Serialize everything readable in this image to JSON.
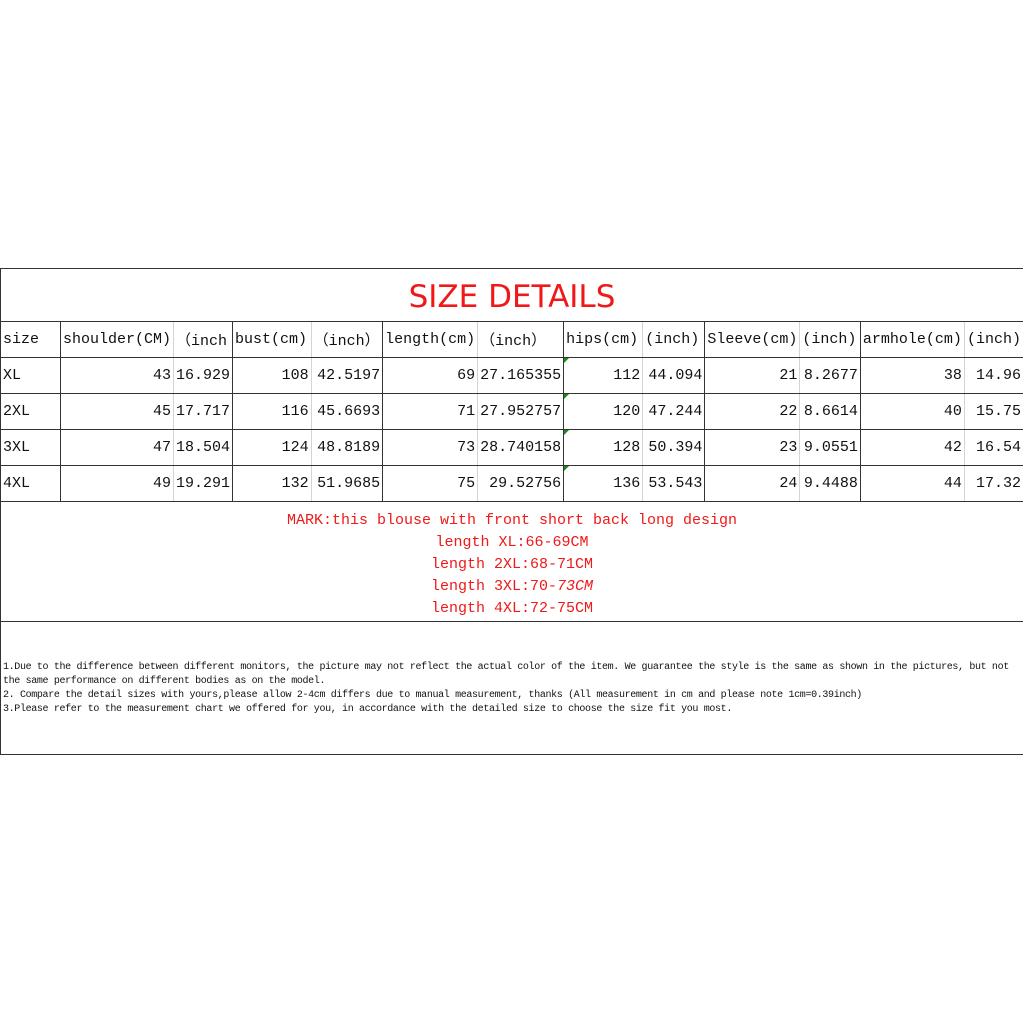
{
  "title": "SIZE DETAILS",
  "table": {
    "headers": [
      "size",
      "shoulder(CM)",
      "（inch",
      "bust(cm)",
      "（inch）",
      "length(cm)",
      "（inch）",
      "hips(cm)",
      "(inch)",
      "Sleeve(cm)",
      "(inch)",
      "armhole(cm)",
      "(inch)"
    ],
    "rows": [
      [
        "XL",
        "43",
        "16.929",
        "108",
        "42.5197",
        "69",
        "27.165355",
        "112",
        "44.094",
        "21",
        "8.2677",
        "38",
        "14.96"
      ],
      [
        "2XL",
        "45",
        "17.717",
        "116",
        "45.6693",
        "71",
        "27.952757",
        "120",
        "47.244",
        "22",
        "8.6614",
        "40",
        "15.75"
      ],
      [
        "3XL",
        "47",
        "18.504",
        "124",
        "48.8189",
        "73",
        "28.740158",
        "128",
        "50.394",
        "23",
        "9.0551",
        "42",
        "16.54"
      ],
      [
        "4XL",
        "49",
        "19.291",
        "132",
        "51.9685",
        "75",
        "29.52756",
        "136",
        "53.543",
        "24",
        "9.4488",
        "44",
        "17.32"
      ]
    ]
  },
  "mark": {
    "line1": "MARK:this blouse with front short back long design",
    "line2": "length XL:66-69CM",
    "line3": "length 2XL:68-71CM",
    "line4_a": "length 3XL:70-",
    "line4_b": "73CM",
    "line5": "length 4XL:72-75CM"
  },
  "notes": [
    "1.Due to the difference between different monitors, the picture may not reflect the actual color of the item. We guarantee the style is the same as shown in the pictures, but not the same performance on different bodies as on the model.",
    "2. Compare the detail sizes with yours,please allow 2-4cm differs due to manual measurement, thanks (All measurement in cm and please note 1cm=0.39inch)",
    "3.Please refer to the measurement chart we offered for you, in accordance with the detailed size to choose the size fit you most."
  ],
  "colors": {
    "title": "#f01818",
    "mark": "#f01818"
  }
}
